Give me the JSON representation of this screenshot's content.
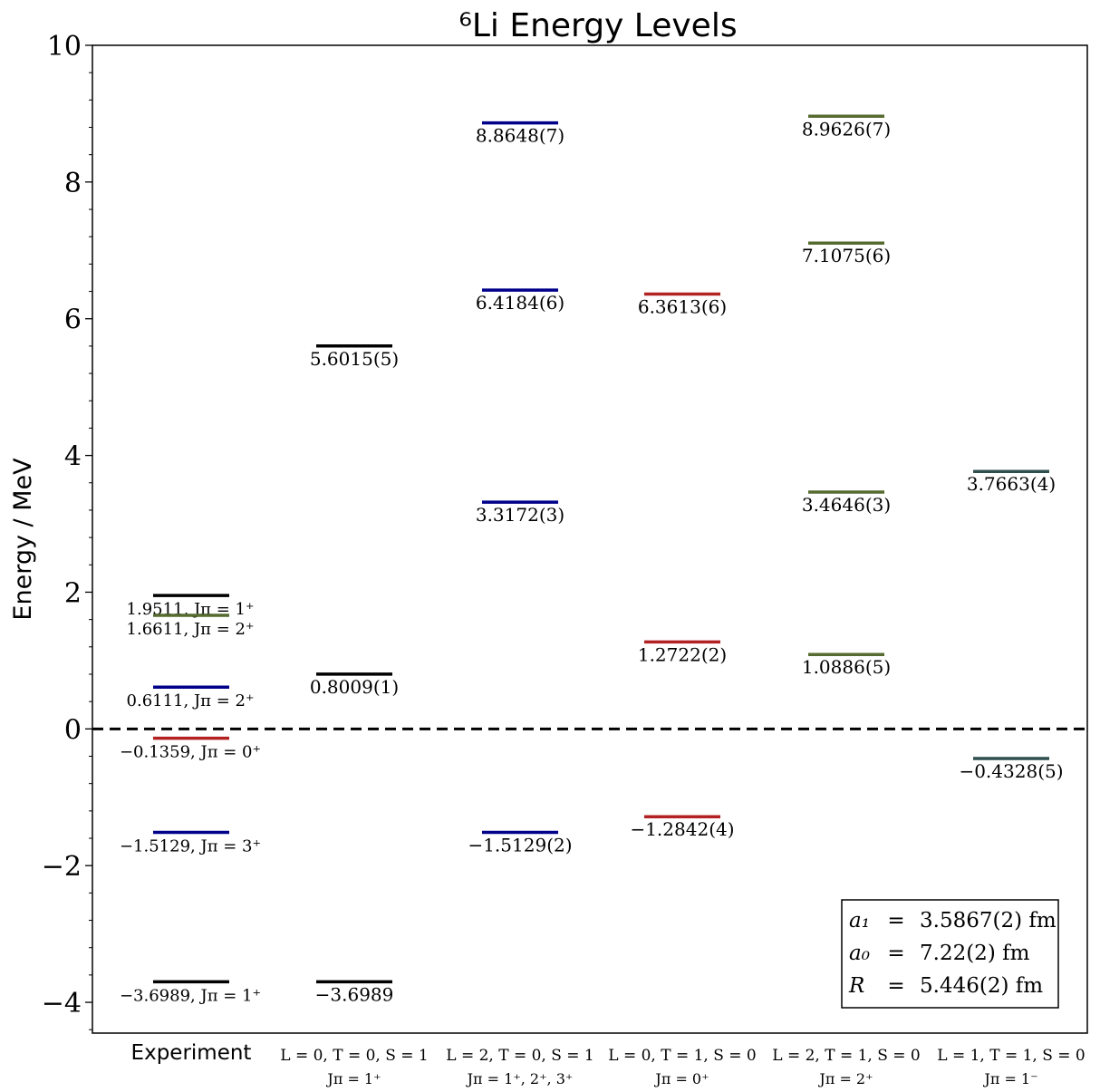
{
  "chart_data": {
    "type": "energy-level",
    "title": "⁶Li Energy Levels",
    "ylabel": "Energy / MeV",
    "ylim": [
      -4.45,
      10
    ],
    "yticks": [
      {
        "value": -4,
        "label": "−4"
      },
      {
        "value": -2,
        "label": "−2"
      },
      {
        "value": 0,
        "label": "0"
      },
      {
        "value": 2,
        "label": "2"
      },
      {
        "value": 4,
        "label": "4"
      },
      {
        "value": 6,
        "label": "6"
      },
      {
        "value": 8,
        "label": "8"
      },
      {
        "value": 10,
        "label": "10"
      }
    ],
    "zero_line": true,
    "colors": {
      "black": "#000000",
      "red": "#b22222",
      "blue": "#00008b",
      "green": "#556b2f",
      "slate": "#2f4f4f"
    },
    "columns": [
      {
        "label1": "Experiment",
        "label2": "",
        "style": "sans"
      },
      {
        "label1": "L = 0, T = 0, S = 1",
        "label2": "Jπ = 1⁺",
        "style": "serif"
      },
      {
        "label1": "L = 2, T = 0, S = 1",
        "label2": "Jπ = 1⁺, 2⁺, 3⁺",
        "style": "serif"
      },
      {
        "label1": "L = 0, T = 1, S = 0",
        "label2": "Jπ = 0⁺",
        "style": "serif"
      },
      {
        "label1": "L = 2, T = 1, S = 0",
        "label2": "Jπ = 2⁺",
        "style": "serif"
      },
      {
        "label1": "L = 1, T = 1, S = 0",
        "label2": "Jπ = 1⁻",
        "style": "serif"
      }
    ],
    "levels": [
      {
        "column": 0,
        "energy": 1.9511,
        "label": "1.9511,  Jπ = 1⁺",
        "color": "black"
      },
      {
        "column": 0,
        "energy": 1.6611,
        "label": "1.6611,  Jπ = 2⁺",
        "color": "green"
      },
      {
        "column": 0,
        "energy": 0.6111,
        "label": "0.6111,  Jπ = 2⁺",
        "color": "blue"
      },
      {
        "column": 0,
        "energy": -0.1359,
        "label": "−0.1359,  Jπ = 0⁺",
        "color": "red"
      },
      {
        "column": 0,
        "energy": -1.5129,
        "label": "−1.5129,  Jπ = 3⁺",
        "color": "blue"
      },
      {
        "column": 0,
        "energy": -3.6989,
        "label": "−3.6989,  Jπ = 1⁺",
        "color": "black"
      },
      {
        "column": 1,
        "energy": 5.6015,
        "label": "5.6015(5)",
        "color": "black"
      },
      {
        "column": 1,
        "energy": 0.8009,
        "label": "0.8009(1)",
        "color": "black"
      },
      {
        "column": 1,
        "energy": -3.6989,
        "label": "−3.6989",
        "color": "black"
      },
      {
        "column": 2,
        "energy": 8.8648,
        "label": "8.8648(7)",
        "color": "blue"
      },
      {
        "column": 2,
        "energy": 6.4184,
        "label": "6.4184(6)",
        "color": "blue"
      },
      {
        "column": 2,
        "energy": 3.3172,
        "label": "3.3172(3)",
        "color": "blue"
      },
      {
        "column": 2,
        "energy": -1.5129,
        "label": "−1.5129(2)",
        "color": "blue"
      },
      {
        "column": 3,
        "energy": 6.3613,
        "label": "6.3613(6)",
        "color": "red"
      },
      {
        "column": 3,
        "energy": 1.2722,
        "label": "1.2722(2)",
        "color": "red"
      },
      {
        "column": 3,
        "energy": -1.2842,
        "label": "−1.2842(4)",
        "color": "red"
      },
      {
        "column": 4,
        "energy": 8.9626,
        "label": "8.9626(7)",
        "color": "green"
      },
      {
        "column": 4,
        "energy": 7.1075,
        "label": "7.1075(6)",
        "color": "green"
      },
      {
        "column": 4,
        "energy": 3.4646,
        "label": "3.4646(3)",
        "color": "green"
      },
      {
        "column": 4,
        "energy": 1.0886,
        "label": "1.0886(5)",
        "color": "green"
      },
      {
        "column": 5,
        "energy": 3.7663,
        "label": "3.7663(4)",
        "color": "slate"
      },
      {
        "column": 5,
        "energy": -0.4328,
        "label": "−0.4328(5)",
        "color": "slate"
      }
    ],
    "legend_box": {
      "placement": "bottom-right",
      "rows": [
        {
          "lhs": "a₁",
          "eq": "=",
          "rhs": "3.5867(2) fm"
        },
        {
          "lhs": "a₀",
          "eq": "=",
          "rhs": "7.22(2) fm"
        },
        {
          "lhs": "R",
          "eq": "=",
          "rhs": "5.446(2) fm"
        }
      ]
    }
  }
}
